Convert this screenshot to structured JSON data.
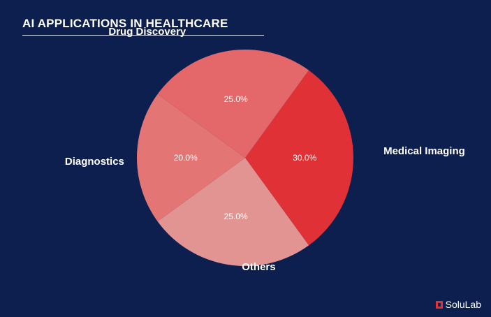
{
  "brand": {
    "name": "SoluLab",
    "logo_icon": "solulab-logo-icon"
  },
  "chart_data": {
    "type": "pie",
    "title": "AI APPLICATIONS IN HEALTHCARE",
    "labels": [
      "Medical Imaging",
      "Others",
      "Diagnostics",
      "Drug Discovery"
    ],
    "values": [
      30.0,
      25.0,
      20.0,
      25.0
    ],
    "value_labels": [
      "30.0%",
      "25.0%",
      "20.0%",
      "25.0%"
    ],
    "colors": [
      "#e03236",
      "#e29493",
      "#e37675",
      "#e4686a"
    ],
    "start_angle_deg": -54,
    "direction": "clockwise",
    "legend": "none"
  }
}
